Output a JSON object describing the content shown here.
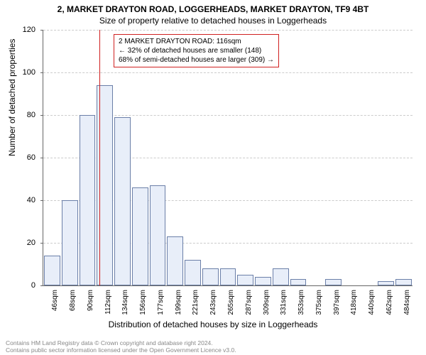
{
  "header": {
    "title": "2, MARKET DRAYTON ROAD, LOGGERHEADS, MARKET DRAYTON, TF9 4BT",
    "subtitle": "Size of property relative to detached houses in Loggerheads"
  },
  "chart": {
    "type": "histogram",
    "ylabel": "Number of detached properties",
    "xlabel": "Distribution of detached houses by size in Loggerheads",
    "ylim": [
      0,
      120
    ],
    "ytick_step": 20,
    "bar_fill": "#e8eef9",
    "bar_border": "#6b7fa8",
    "grid_color": "#cccccc",
    "marker_color": "#d02020",
    "background": "#ffffff",
    "label_fontsize": 12,
    "tick_fontsize": 10,
    "categories": [
      "46sqm",
      "68sqm",
      "90sqm",
      "112sqm",
      "134sqm",
      "156sqm",
      "177sqm",
      "199sqm",
      "221sqm",
      "243sqm",
      "265sqm",
      "287sqm",
      "309sqm",
      "331sqm",
      "353sqm",
      "375sqm",
      "397sqm",
      "418sqm",
      "440sqm",
      "462sqm",
      "484sqm"
    ],
    "values": [
      14,
      40,
      80,
      94,
      79,
      46,
      47,
      23,
      12,
      8,
      8,
      5,
      4,
      8,
      3,
      0,
      3,
      0,
      0,
      2,
      3
    ],
    "marker_position": 3.2,
    "marker_height": 120
  },
  "annotation": {
    "line1": "2 MARKET DRAYTON ROAD: 116sqm",
    "line2": "← 32% of detached houses are smaller (148)",
    "line3": "68% of semi-detached houses are larger (309) →"
  },
  "attribution": {
    "line1": "Contains HM Land Registry data © Crown copyright and database right 2024.",
    "line2": "Contains public sector information licensed under the Open Government Licence v3.0."
  }
}
